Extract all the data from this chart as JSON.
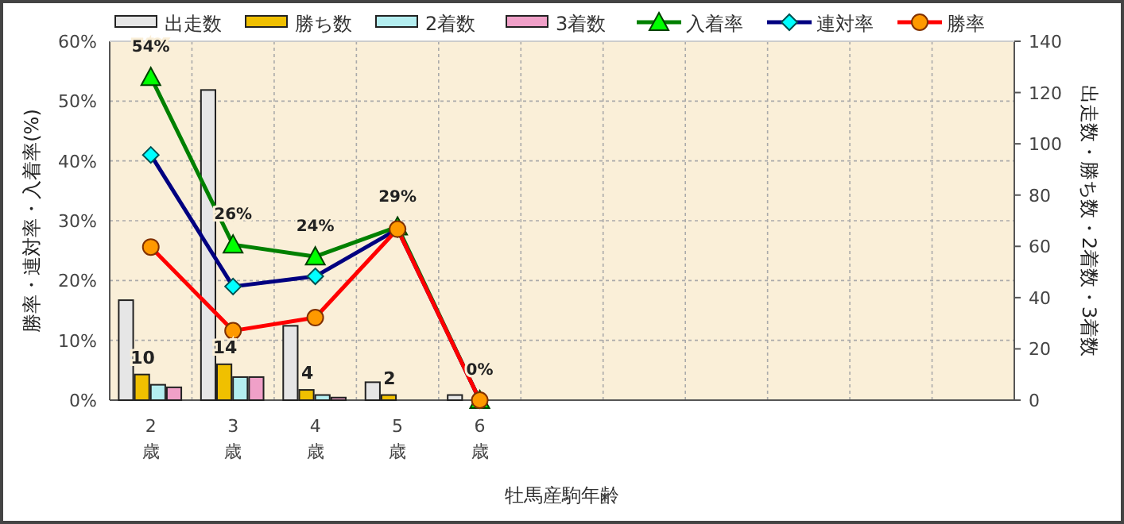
{
  "chart_data": {
    "type": "bar",
    "xlabel": "牡馬産駒年齢",
    "ylabel": "勝率・連対率・入着率(%)",
    "y2label": "出走数・勝ち数・2着数・3着数",
    "categories": [
      "2歳",
      "3歳",
      "4歳",
      "5歳",
      "6歳",
      null,
      null,
      null,
      null,
      null,
      null
    ],
    "ylim": [
      0,
      60
    ],
    "yticks": [
      {
        "value": 0,
        "label": "0%"
      },
      {
        "value": 10,
        "label": "10%"
      },
      {
        "value": 20,
        "label": "20%"
      },
      {
        "value": 30,
        "label": "30%"
      },
      {
        "value": 40,
        "label": "40%"
      },
      {
        "value": 50,
        "label": "50%"
      },
      {
        "value": 60,
        "label": "60%"
      }
    ],
    "y2lim": [
      0,
      140
    ],
    "y2ticks": [
      0,
      20,
      40,
      60,
      80,
      100,
      120,
      140
    ],
    "grid": true,
    "legend": "top",
    "series": [
      {
        "name": "出走数",
        "axis": "y2",
        "color": "#e6e6e6",
        "values": [
          39,
          121,
          29,
          7,
          2,
          null,
          null,
          null,
          null,
          null,
          null
        ]
      },
      {
        "name": "勝ち数",
        "axis": "y2",
        "color": "#f0c000",
        "values": [
          10,
          14,
          4,
          2,
          0,
          null,
          null,
          null,
          null,
          null,
          null
        ],
        "value_labels": [
          "10",
          "14",
          "4",
          "2",
          null,
          null,
          null,
          null,
          null,
          null,
          null
        ]
      },
      {
        "name": "2着数",
        "axis": "y2",
        "color": "#b4eef0",
        "values": [
          6,
          9,
          2,
          0,
          0,
          null,
          null,
          null,
          null,
          null,
          null
        ]
      },
      {
        "name": "3着数",
        "axis": "y2",
        "color": "#f0a0c8",
        "values": [
          5,
          9,
          1,
          0,
          0,
          null,
          null,
          null,
          null,
          null,
          null
        ]
      },
      {
        "name": "入着率",
        "type": "line",
        "axis": "y",
        "color": "#008000",
        "marker": "triangle",
        "values": [
          54,
          26,
          24,
          29,
          0,
          null,
          null,
          null,
          null,
          null,
          null
        ],
        "value_labels": [
          "54%",
          "26%",
          "24%",
          "29%",
          "0%",
          null,
          null,
          null,
          null,
          null,
          null
        ]
      },
      {
        "name": "連対率",
        "type": "line",
        "axis": "y",
        "color": "#000080",
        "marker": "diamond",
        "values": [
          41,
          19,
          20.7,
          28.6,
          0,
          null,
          null,
          null,
          null,
          null,
          null
        ]
      },
      {
        "name": "勝率",
        "type": "line",
        "axis": "y",
        "color": "#ff0000",
        "marker": "circle",
        "values": [
          25.6,
          11.6,
          13.8,
          28.6,
          0,
          null,
          null,
          null,
          null,
          null,
          null
        ]
      }
    ]
  }
}
